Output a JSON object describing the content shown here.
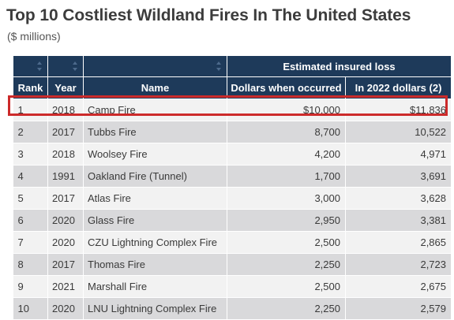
{
  "title": "Top 10 Costliest Wildland Fires In The United States",
  "subtitle": "($ millions)",
  "table": {
    "group_header": "Estimated insured loss",
    "headers": {
      "rank": "Rank",
      "year": "Year",
      "name": "Name",
      "dollars_when_occurred": "Dollars when occurred",
      "in_2022_dollars": "In 2022 dollars (2)"
    },
    "rows": [
      {
        "rank": "1",
        "year": "2018",
        "name": "Camp Fire",
        "dollars": "$10,000",
        "adjusted": "$11,836",
        "highlighted": true
      },
      {
        "rank": "2",
        "year": "2017",
        "name": "Tubbs Fire",
        "dollars": "8,700",
        "adjusted": "10,522"
      },
      {
        "rank": "3",
        "year": "2018",
        "name": "Woolsey Fire",
        "dollars": "4,200",
        "adjusted": "4,971"
      },
      {
        "rank": "4",
        "year": "1991",
        "name": "Oakland Fire (Tunnel)",
        "dollars": "1,700",
        "adjusted": "3,691"
      },
      {
        "rank": "5",
        "year": "2017",
        "name": "Atlas Fire",
        "dollars": "3,000",
        "adjusted": "3,628"
      },
      {
        "rank": "6",
        "year": "2020",
        "name": "Glass Fire",
        "dollars": "2,950",
        "adjusted": "3,381"
      },
      {
        "rank": "7",
        "year": "2020",
        "name": "CZU Lightning Complex Fire",
        "dollars": "2,500",
        "adjusted": "2,865"
      },
      {
        "rank": "8",
        "year": "2017",
        "name": "Thomas Fire",
        "dollars": "2,250",
        "adjusted": "2,723"
      },
      {
        "rank": "9",
        "year": "2021",
        "name": "Marshall Fire",
        "dollars": "2,500",
        "adjusted": "2,675"
      },
      {
        "rank": "10",
        "year": "2020",
        "name": "LNU Lightning Complex Fire",
        "dollars": "2,250",
        "adjusted": "2,579"
      }
    ]
  },
  "colors": {
    "header_bg": "#1e3a5a",
    "row_light": "#f2f2f2",
    "row_dark": "#d9d9db",
    "highlight": "#cc2a2a"
  }
}
